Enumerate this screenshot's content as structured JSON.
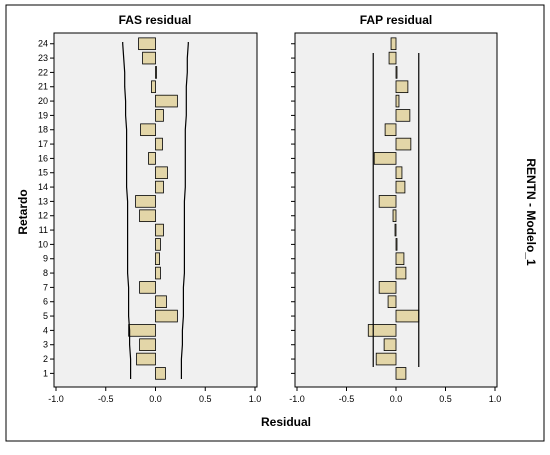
{
  "chart_data": {
    "type": "bar",
    "orientation": "horizontal",
    "panels_title": [
      "FAS residual",
      "FAP residual"
    ],
    "xlabel": "Residual",
    "ylabel": "Retardo",
    "side_label": "RENTN - Modelo_1",
    "xlim": [
      -1.0,
      1.0
    ],
    "xticks": [
      "-1.0",
      "-0.5",
      "0.0",
      "0.5",
      "1.0"
    ],
    "lags": [
      1,
      2,
      3,
      4,
      5,
      6,
      7,
      8,
      9,
      10,
      11,
      12,
      13,
      14,
      15,
      16,
      17,
      18,
      19,
      20,
      21,
      22,
      23,
      24
    ],
    "bar_color": "#e3d6a8",
    "panels": [
      {
        "name": "FAS residual",
        "values": [
          0.1,
          -0.19,
          -0.16,
          -0.27,
          0.22,
          0.11,
          -0.16,
          0.05,
          0.04,
          0.05,
          0.08,
          -0.16,
          -0.2,
          0.08,
          0.12,
          -0.07,
          0.07,
          -0.15,
          0.08,
          0.22,
          -0.04,
          0.0,
          -0.13,
          -0.17
        ],
        "upper_limit": [
          0.26,
          0.26,
          0.27,
          0.27,
          0.28,
          0.28,
          0.28,
          0.29,
          0.29,
          0.29,
          0.29,
          0.29,
          0.29,
          0.3,
          0.3,
          0.3,
          0.3,
          0.3,
          0.31,
          0.31,
          0.31,
          0.32,
          0.32,
          0.33
        ],
        "lower_limit": [
          -0.25,
          -0.25,
          -0.26,
          -0.26,
          -0.27,
          -0.27,
          -0.27,
          -0.28,
          -0.28,
          -0.28,
          -0.28,
          -0.28,
          -0.28,
          -0.29,
          -0.29,
          -0.29,
          -0.29,
          -0.29,
          -0.3,
          -0.3,
          -0.31,
          -0.31,
          -0.32,
          -0.33
        ]
      },
      {
        "name": "FAP residual",
        "values": [
          0.1,
          -0.2,
          -0.12,
          -0.28,
          0.23,
          -0.08,
          -0.17,
          0.1,
          0.08,
          0.01,
          -0.01,
          -0.03,
          -0.17,
          0.09,
          0.06,
          -0.22,
          0.15,
          -0.11,
          0.14,
          0.03,
          0.12,
          0.01,
          -0.07,
          -0.05
        ],
        "upper_limit": 0.23,
        "lower_limit": -0.23
      }
    ]
  }
}
